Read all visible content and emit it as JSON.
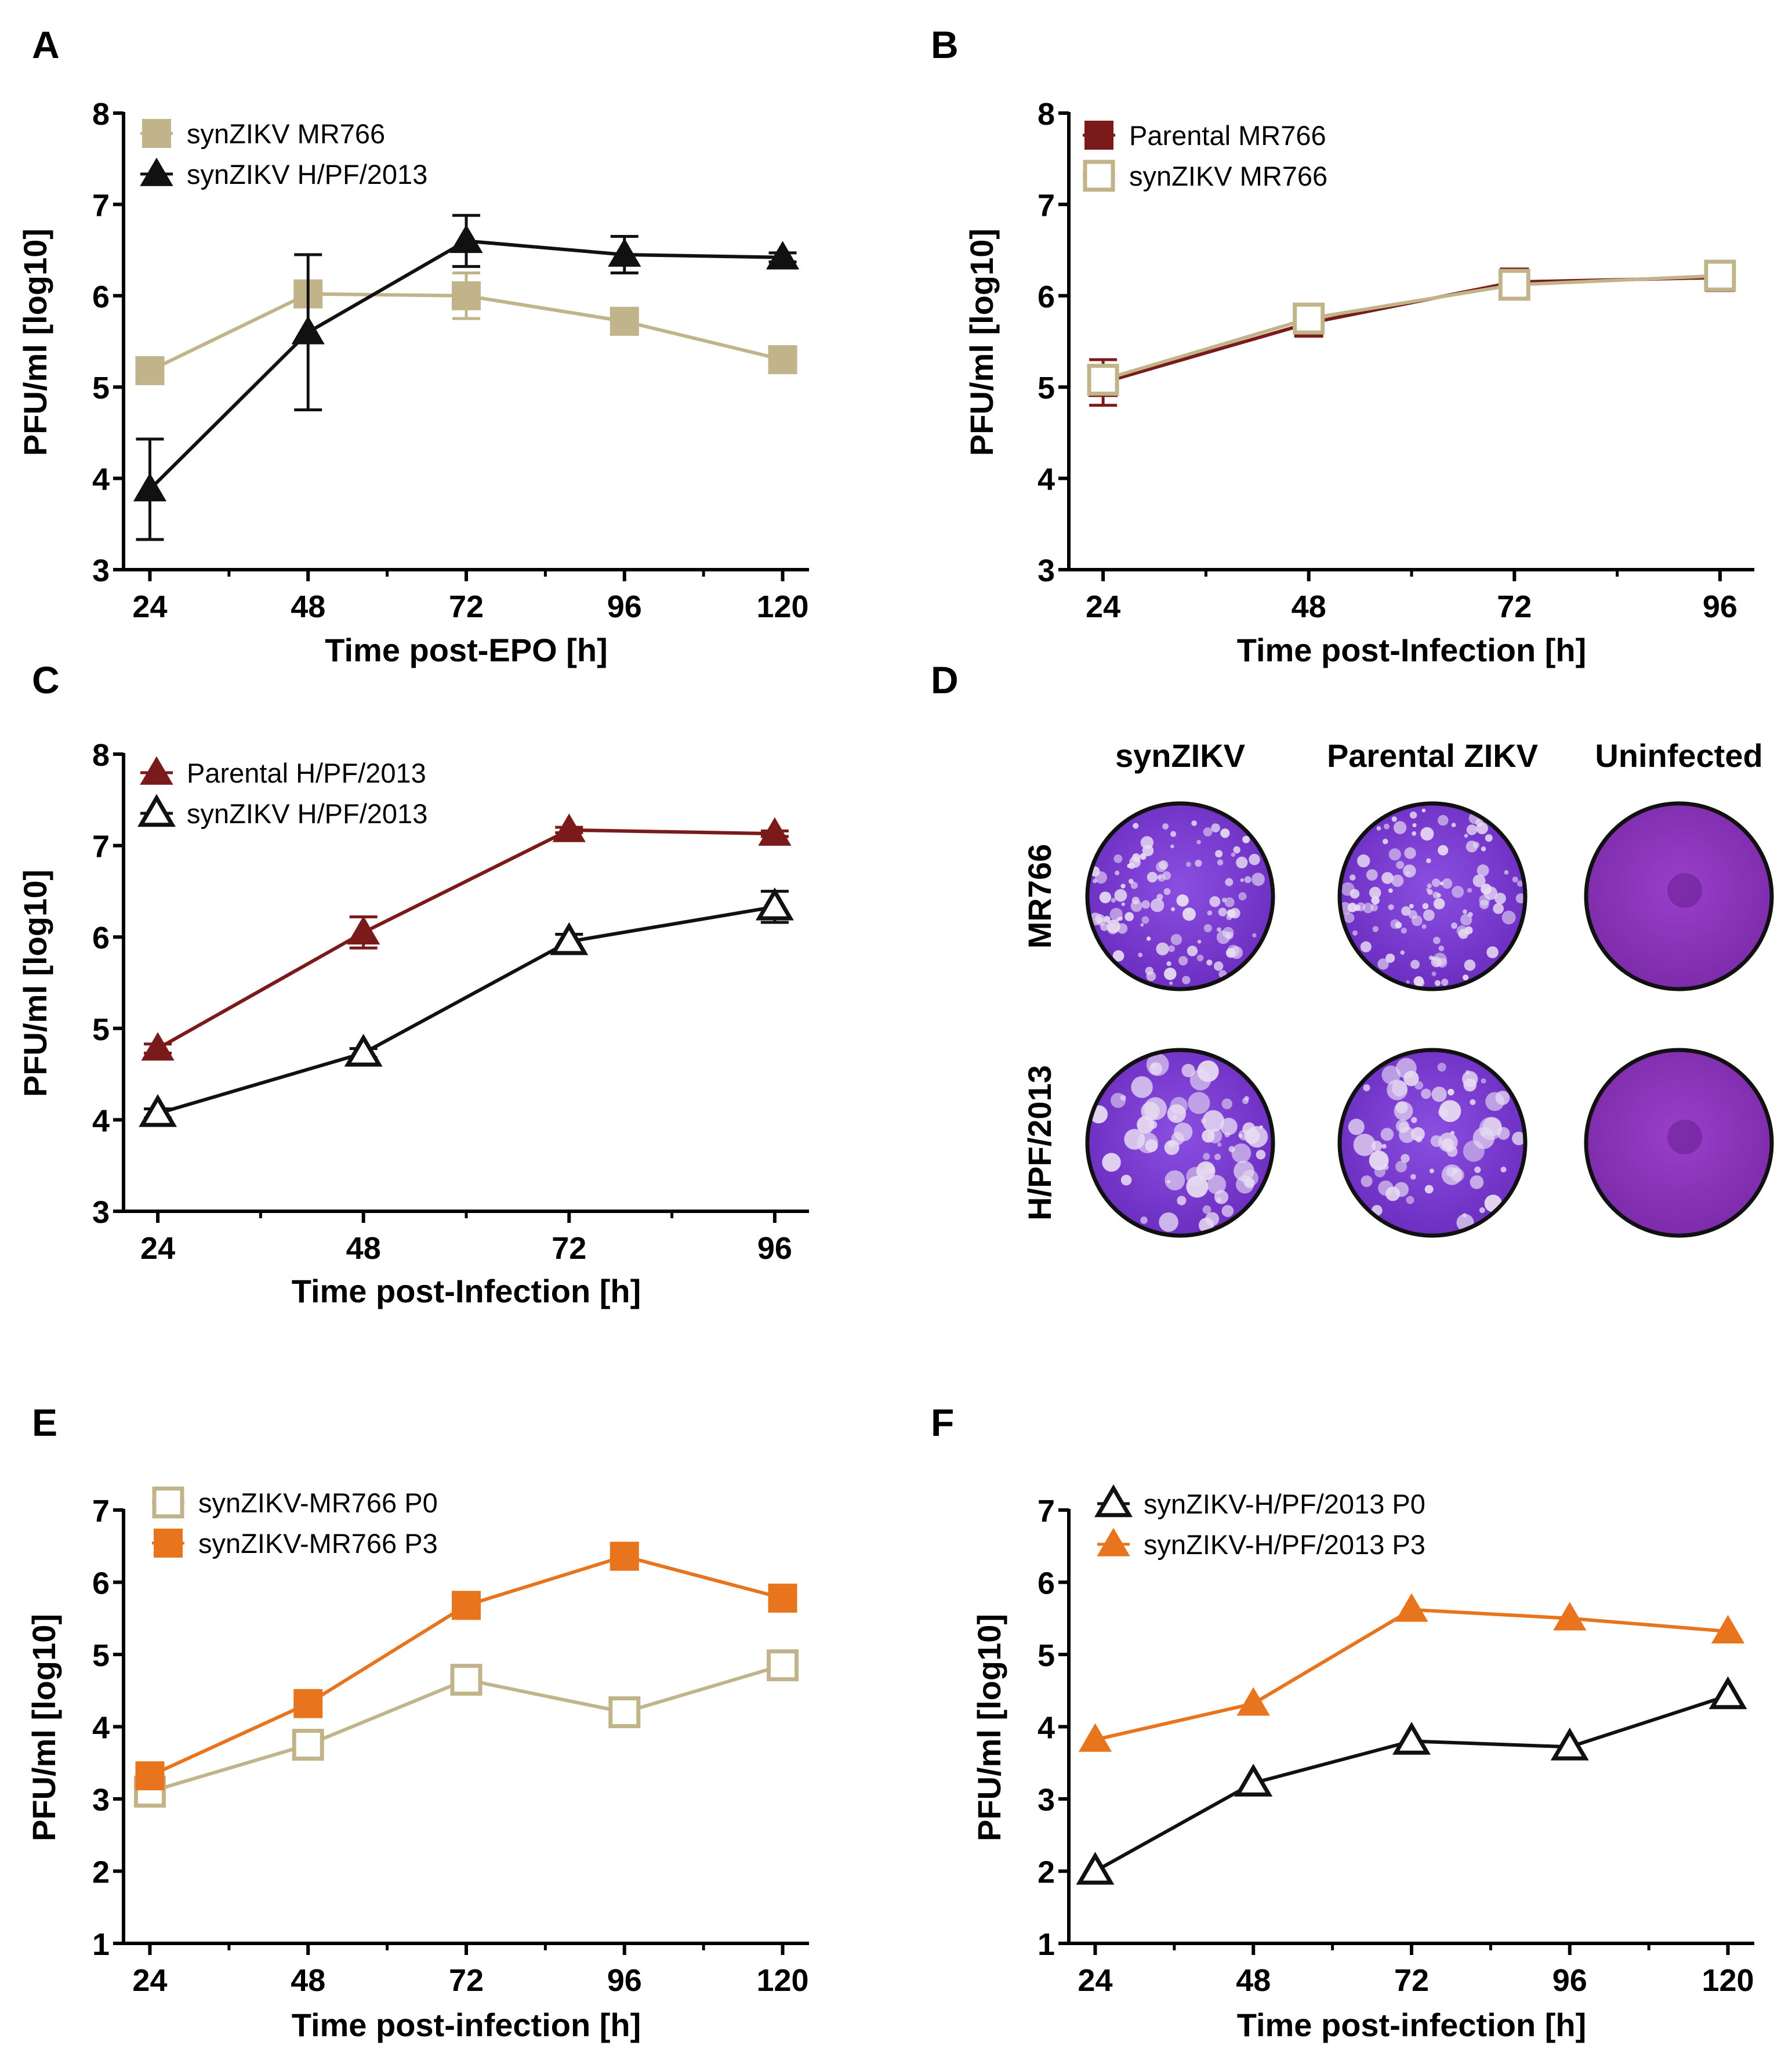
{
  "chart_data": [
    {
      "panel": "A",
      "type": "line",
      "xlabel": "Time post-EPO [h]",
      "ylabel": "PFU/ml [log10]",
      "x": [
        24,
        48,
        72,
        96,
        120
      ],
      "xticks": [
        "24",
        "48",
        "72",
        "96",
        "120"
      ],
      "xlim": [
        20,
        124
      ],
      "ylim": [
        3,
        8
      ],
      "yticks": [
        "3",
        "4",
        "5",
        "6",
        "7",
        "8"
      ],
      "series": [
        {
          "name": "synZIKV MR766",
          "color": "#c2b48a",
          "marker": "square-filled",
          "values": [
            5.18,
            6.02,
            6.0,
            5.72,
            5.3
          ],
          "errors": [
            0.05,
            0.1,
            0.25,
            0.05,
            0.05
          ]
        },
        {
          "name": "synZIKV H/PF/2013",
          "color": "#111111",
          "marker": "triangle-filled",
          "values": [
            3.88,
            5.6,
            6.6,
            6.45,
            6.42
          ],
          "errors": [
            0.55,
            0.85,
            0.28,
            0.2,
            0.05
          ]
        }
      ]
    },
    {
      "panel": "B",
      "type": "line",
      "xlabel": "Time post-Infection [h]",
      "ylabel": "PFU/ml [log10]",
      "x": [
        24,
        48,
        72,
        96
      ],
      "xticks": [
        "24",
        "48",
        "72",
        "96"
      ],
      "xlim": [
        20,
        100
      ],
      "ylim": [
        3,
        8
      ],
      "yticks": [
        "3",
        "4",
        "5",
        "6",
        "7",
        "8"
      ],
      "series": [
        {
          "name": "Parental MR766",
          "color": "#7b1a1a",
          "marker": "square-filled",
          "values": [
            5.05,
            5.7,
            6.15,
            6.2
          ],
          "errors": [
            0.25,
            0.1,
            0.05,
            0.08
          ]
        },
        {
          "name": "synZIKV MR766",
          "color": "#c2b48a",
          "marker": "square-open",
          "values": [
            5.08,
            5.75,
            6.12,
            6.22
          ],
          "errors": [
            0.1,
            0.1,
            0.05,
            0.05
          ]
        }
      ]
    },
    {
      "panel": "C",
      "type": "line",
      "xlabel": "Time post-Infection [h]",
      "ylabel": "PFU/ml [log10]",
      "x": [
        24,
        48,
        72,
        96
      ],
      "xticks": [
        "24",
        "48",
        "72",
        "96"
      ],
      "xlim": [
        20,
        100
      ],
      "ylim": [
        3,
        8
      ],
      "yticks": [
        "3",
        "4",
        "5",
        "6",
        "7",
        "8"
      ],
      "series": [
        {
          "name": "Parental H/PF/2013",
          "color": "#7b1a1a",
          "marker": "triangle-filled",
          "values": [
            4.78,
            6.05,
            7.17,
            7.13
          ],
          "errors": [
            0.05,
            0.17,
            0.03,
            0.03
          ]
        },
        {
          "name": "synZIKV H/PF/2013",
          "color": "#111111",
          "marker": "triangle-open",
          "values": [
            4.07,
            4.73,
            5.95,
            6.33
          ],
          "errors": [
            0.05,
            0.05,
            0.08,
            0.17
          ]
        }
      ]
    },
    {
      "panel": "E",
      "type": "line",
      "xlabel": "Time post-infection [h]",
      "ylabel": "PFU/ml [log10]",
      "x": [
        24,
        48,
        72,
        96,
        120
      ],
      "xticks": [
        "24",
        "48",
        "72",
        "96",
        "120"
      ],
      "xlim": [
        20,
        124
      ],
      "ylim": [
        1,
        7
      ],
      "yticks": [
        "1",
        "2",
        "3",
        "4",
        "5",
        "6",
        "7"
      ],
      "series": [
        {
          "name": "synZIKV-MR766 P0",
          "color": "#c2b48a",
          "marker": "square-open",
          "values": [
            3.1,
            3.75,
            4.65,
            4.2,
            4.85
          ],
          "errors": [
            0,
            0,
            0,
            0,
            0
          ]
        },
        {
          "name": "synZIKV-MR766 P3",
          "color": "#e8741e",
          "marker": "square-filled",
          "values": [
            3.32,
            4.32,
            5.68,
            6.36,
            5.78
          ],
          "errors": [
            0,
            0,
            0,
            0,
            0
          ]
        }
      ]
    },
    {
      "panel": "F",
      "type": "line",
      "xlabel": "Time post-infection [h]",
      "ylabel": "PFU/ml [log10]",
      "x": [
        24,
        48,
        72,
        96,
        120
      ],
      "xticks": [
        "24",
        "48",
        "72",
        "96",
        "120"
      ],
      "xlim": [
        20,
        124
      ],
      "ylim": [
        1,
        7
      ],
      "yticks": [
        "1",
        "2",
        "3",
        "4",
        "5",
        "6",
        "7"
      ],
      "series": [
        {
          "name": "synZIKV-H/PF/2013 P0",
          "color": "#111111",
          "marker": "triangle-open",
          "values": [
            2.0,
            3.22,
            3.8,
            3.72,
            4.43
          ],
          "errors": [
            0,
            0,
            0,
            0,
            0
          ]
        },
        {
          "name": "synZIKV-H/PF/2013 P3",
          "color": "#e8741e",
          "marker": "triangle-filled",
          "values": [
            3.82,
            4.32,
            5.62,
            5.5,
            5.32
          ],
          "errors": [
            0,
            0,
            0,
            0,
            0
          ]
        }
      ]
    }
  ],
  "panel_d": {
    "letter": "D",
    "columns": [
      "synZIKV",
      "Parental ZIKV",
      "Uninfected"
    ],
    "rows": [
      "MR766",
      "H/PF/2013"
    ]
  }
}
